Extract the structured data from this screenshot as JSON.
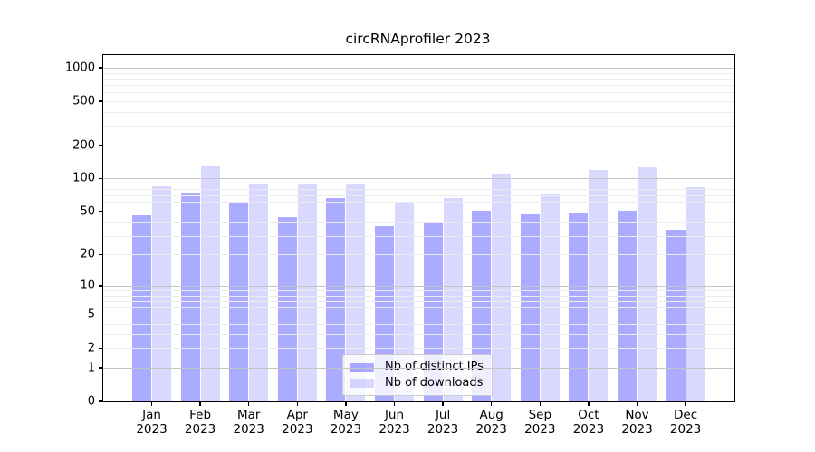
{
  "title": "circRNAprofiler 2023",
  "year_label": "2023",
  "months": [
    "Jan",
    "Feb",
    "Mar",
    "Apr",
    "May",
    "Jun",
    "Jul",
    "Aug",
    "Sep",
    "Oct",
    "Nov",
    "Dec"
  ],
  "chart_data": {
    "type": "bar",
    "title": "circRNAprofiler 2023",
    "categories": [
      "Jan 2023",
      "Feb 2023",
      "Mar 2023",
      "Apr 2023",
      "May 2023",
      "Jun 2023",
      "Jul 2023",
      "Aug 2023",
      "Sep 2023",
      "Oct 2023",
      "Nov 2023",
      "Dec 2023"
    ],
    "series": [
      {
        "name": "Nb of distinct IPs",
        "color_hex": "#aaaaff",
        "color_rgba": "rgba(0,0,255,0.33)",
        "values": [
          46,
          75,
          60,
          45,
          67,
          37,
          39,
          51,
          47,
          48,
          51,
          34
        ]
      },
      {
        "name": "Nb of downloads",
        "color_hex": "#d9d9ff",
        "color_rgba": "rgba(0,0,255,0.15)",
        "values": [
          85,
          130,
          90,
          90,
          90,
          61,
          66,
          110,
          72,
          120,
          126,
          84
        ]
      }
    ],
    "yticks": [
      0,
      1,
      2,
      5,
      10,
      20,
      50,
      100,
      200,
      500,
      1000
    ],
    "ylabel": "",
    "xlabel": "",
    "ylim": [
      0,
      1300
    ],
    "yscale": "log-like: position proportional to log10(1+y)",
    "grid": "horizontal; darker lines at 1,10,100,1000; faint minor lines at 2-9 per decade",
    "legend_position": "lower center"
  },
  "colors": {
    "background": "#ffffff",
    "axis": "#000000",
    "text": "#000000",
    "grid_major": "#c5c5c5",
    "grid_minor": "#ececec",
    "legend_border": "#cccccc",
    "legend_bg": "rgba(255,255,255,0.8)"
  }
}
